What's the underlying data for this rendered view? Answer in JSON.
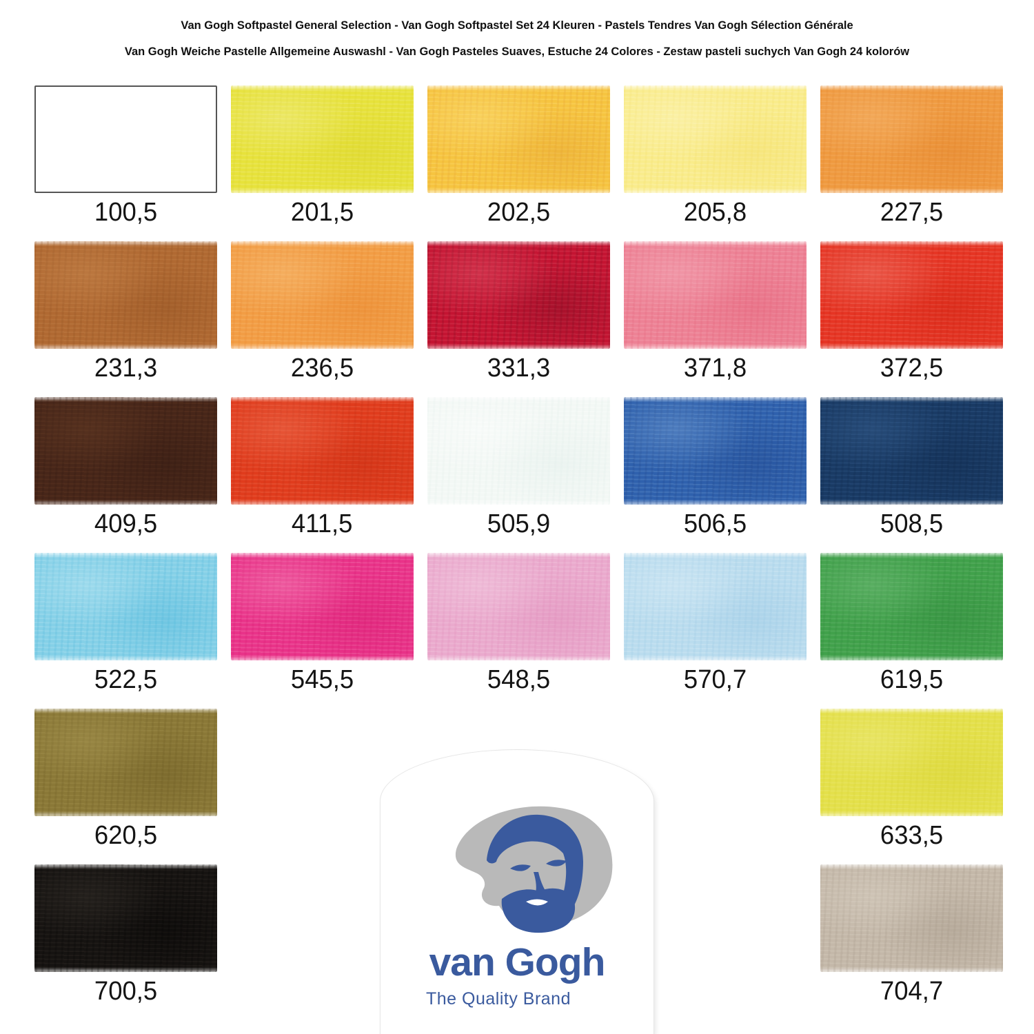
{
  "header": {
    "line1": "Van Gogh Softpastel General Selection - Van Gogh Softpastel Set 24 Kleuren - Pastels Tendres Van Gogh Sélection Générale",
    "line2": "Van Gogh Weiche Pastelle Allgemeine Auswashl - Van Gogh Pasteles Suaves, Estuche 24 Colores - Zestaw pasteli suchych Van Gogh 24 kolorów"
  },
  "palette": {
    "set_size": 24,
    "swatches": [
      {
        "code": "100,5",
        "row": 1,
        "col": 1,
        "color": "#ffffff",
        "light": "#ffffff",
        "dark": "#f2f2f2",
        "border": true,
        "texture": false
      },
      {
        "code": "201,5",
        "row": 1,
        "col": 2,
        "color": "#e7e23b",
        "light": "#f3efa0",
        "dark": "#d6d028",
        "border": false,
        "texture": true
      },
      {
        "code": "202,5",
        "row": 1,
        "col": 3,
        "color": "#f6c440",
        "light": "#fce386",
        "dark": "#e09a2e",
        "border": false,
        "texture": true
      },
      {
        "code": "205,8",
        "row": 1,
        "col": 4,
        "color": "#f9ec8c",
        "light": "#fdf6c9",
        "dark": "#f1da60",
        "border": false,
        "texture": true
      },
      {
        "code": "227,5",
        "row": 1,
        "col": 5,
        "color": "#ef9a40",
        "light": "#f7bd7c",
        "dark": "#df7e27",
        "border": false,
        "texture": true
      },
      {
        "code": "231,3",
        "row": 2,
        "col": 1,
        "color": "#b06932",
        "light": "#cb8c53",
        "dark": "#8a4c1f",
        "border": false,
        "texture": true
      },
      {
        "code": "236,5",
        "row": 2,
        "col": 2,
        "color": "#f29d45",
        "light": "#f8c684",
        "dark": "#e5822a",
        "border": false,
        "texture": true
      },
      {
        "code": "331,3",
        "row": 2,
        "col": 3,
        "color": "#c41432",
        "light": "#e25b6e",
        "dark": "#6f0a1d",
        "border": false,
        "texture": true
      },
      {
        "code": "371,8",
        "row": 2,
        "col": 4,
        "color": "#ed8295",
        "light": "#f5b5c1",
        "dark": "#e25b74",
        "border": false,
        "texture": true
      },
      {
        "code": "372,5",
        "row": 2,
        "col": 5,
        "color": "#e63524",
        "light": "#f0887c",
        "dark": "#c9200f",
        "border": false,
        "texture": true
      },
      {
        "code": "409,5",
        "row": 3,
        "col": 1,
        "color": "#472619",
        "light": "#6b4027",
        "dark": "#2e1710",
        "border": false,
        "texture": true
      },
      {
        "code": "411,5",
        "row": 3,
        "col": 2,
        "color": "#e03c1d",
        "light": "#ef7a5d",
        "dark": "#bf2a10",
        "border": false,
        "texture": true
      },
      {
        "code": "505,9",
        "row": 3,
        "col": 3,
        "color": "#f3f8f5",
        "light": "#ffffff",
        "dark": "#dcebe7",
        "border": false,
        "texture": true
      },
      {
        "code": "506,5",
        "row": 3,
        "col": 4,
        "color": "#2f61ad",
        "light": "#7aa4d6",
        "dark": "#1d4186",
        "border": false,
        "texture": true
      },
      {
        "code": "508,5",
        "row": 3,
        "col": 5,
        "color": "#193a64",
        "light": "#3c6596",
        "dark": "#0e2647",
        "border": false,
        "texture": true
      },
      {
        "code": "522,5",
        "row": 4,
        "col": 1,
        "color": "#85d0e7",
        "light": "#c2e9f4",
        "dark": "#45b2d8",
        "border": false,
        "texture": true
      },
      {
        "code": "545,5",
        "row": 4,
        "col": 2,
        "color": "#e93389",
        "light": "#f592be",
        "dark": "#d2176b",
        "border": false,
        "texture": true
      },
      {
        "code": "548,5",
        "row": 4,
        "col": 3,
        "color": "#eaaacd",
        "light": "#f5d4e6",
        "dark": "#dd85b5",
        "border": false,
        "texture": true
      },
      {
        "code": "570,7",
        "row": 4,
        "col": 4,
        "color": "#badcee",
        "light": "#e1f0f8",
        "dark": "#93c4e2",
        "border": false,
        "texture": true
      },
      {
        "code": "619,5",
        "row": 4,
        "col": 5,
        "color": "#41a14b",
        "light": "#7cc182",
        "dark": "#2c8338",
        "border": false,
        "texture": true
      },
      {
        "code": "620,5",
        "row": 5,
        "col": 1,
        "color": "#8a7837",
        "light": "#ab9a56",
        "dark": "#66551f",
        "border": false,
        "texture": true
      },
      {
        "code": "633,5",
        "row": 5,
        "col": 5,
        "color": "#e4e04b",
        "light": "#eeeb88",
        "dark": "#d4cf2e",
        "border": false,
        "texture": true
      },
      {
        "code": "700,5",
        "row": 6,
        "col": 1,
        "color": "#161311",
        "light": "#3a352f",
        "dark": "#000000",
        "border": false,
        "texture": true
      },
      {
        "code": "704,7",
        "row": 6,
        "col": 5,
        "color": "#c4b8a9",
        "light": "#ddd5c8",
        "dark": "#9d9080",
        "border": false,
        "texture": true
      }
    ]
  },
  "logo": {
    "brand": "van Gogh",
    "tagline": "The Quality Brand",
    "blue": "#3a5a9e",
    "grey": "#b9b9b9",
    "card_bg": "#ffffff"
  }
}
